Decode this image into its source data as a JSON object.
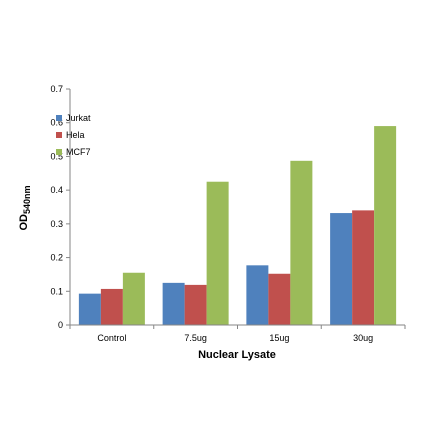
{
  "chart_data": {
    "type": "bar",
    "categories": [
      "Control",
      "7.5ug",
      "15ug",
      "30ug"
    ],
    "series": [
      {
        "name": "Jurkat",
        "values": [
          0.093,
          0.125,
          0.177,
          0.332
        ]
      },
      {
        "name": "Hela",
        "values": [
          0.107,
          0.119,
          0.152,
          0.34
        ]
      },
      {
        "name": "MCF7",
        "values": [
          0.155,
          0.425,
          0.487,
          0.59
        ]
      }
    ],
    "colors": [
      "#4F81BD",
      "#C0504D",
      "#9BBB59"
    ],
    "xlabel": "Nuclear Lysate",
    "ylabel_main": "OD",
    "ylabel_sub": "540nm",
    "ylim": [
      0,
      0.7
    ],
    "yticks": [
      "0",
      "0.1",
      "0.2",
      "0.3",
      "0.4",
      "0.5",
      "0.6",
      "0.7"
    ],
    "grid": false,
    "legend_position": "top-left"
  }
}
